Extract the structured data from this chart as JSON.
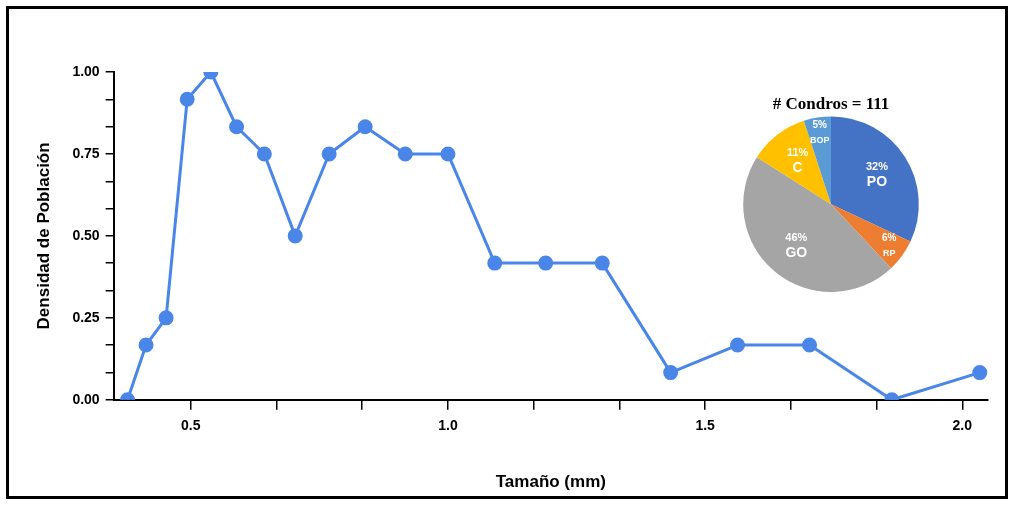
{
  "chart_data": [
    {
      "type": "line",
      "xlabel": "Tamaño (mm)",
      "ylabel": "Densidad de Población",
      "marker": "circle",
      "grid": false,
      "xlim": [
        0.35,
        2.05
      ],
      "ylim": [
        0,
        1
      ],
      "xticks": [
        {
          "value": 0.5,
          "label": "0.5"
        },
        {
          "value": 0.6667,
          "label": null
        },
        {
          "value": 0.8333,
          "label": null
        },
        {
          "value": 1,
          "label": "1.0"
        },
        {
          "value": 1.1667,
          "label": null
        },
        {
          "value": 1.3333,
          "label": null
        },
        {
          "value": 1.5,
          "label": "1.5"
        },
        {
          "value": 1.6667,
          "label": null
        },
        {
          "value": 1.8333,
          "label": null
        },
        {
          "value": 2,
          "label": "2.0"
        }
      ],
      "yticks": [
        {
          "value": 0,
          "label": "0.00"
        },
        {
          "value": 0.0833,
          "label": null
        },
        {
          "value": 0.1667,
          "label": null
        },
        {
          "value": 0.25,
          "label": "0.25"
        },
        {
          "value": 0.3333,
          "label": null
        },
        {
          "value": 0.4167,
          "label": null
        },
        {
          "value": 0.5,
          "label": "0.50"
        },
        {
          "value": 0.5833,
          "label": null
        },
        {
          "value": 0.6667,
          "label": null
        },
        {
          "value": 0.75,
          "label": "0.75"
        },
        {
          "value": 0.8333,
          "label": null
        },
        {
          "value": 0.9167,
          "label": null
        },
        {
          "value": 1,
          "label": "1.00"
        }
      ],
      "x": [
        0.377,
        0.413,
        0.452,
        0.493,
        0.539,
        0.589,
        0.643,
        0.703,
        0.769,
        0.839,
        0.917,
        1.0,
        1.091,
        1.19,
        1.3,
        1.433,
        1.563,
        1.703,
        1.863,
        2.034
      ],
      "series": [
        {
          "color": "#4a86e8",
          "values": [
            0,
            0.167,
            0.25,
            0.917,
            1.0,
            0.833,
            0.75,
            0.5,
            0.75,
            0.833,
            0.75,
            0.75,
            0.417,
            0.417,
            0.417,
            0.083,
            0.167,
            0.167,
            0,
            0.083
          ]
        }
      ]
    },
    {
      "type": "pie",
      "title": "# Condros = 111",
      "categories": [
        "PO",
        "RP",
        "GO",
        "C",
        "BOP"
      ],
      "values": [
        32,
        6,
        46,
        11,
        5
      ],
      "colors": [
        "#4472c4",
        "#ed7d31",
        "#a5a5a5",
        "#ffc000",
        "#5b9bd5"
      ],
      "value_labels": [
        "32%",
        "6%",
        "46%",
        "11%",
        "5%"
      ]
    }
  ]
}
